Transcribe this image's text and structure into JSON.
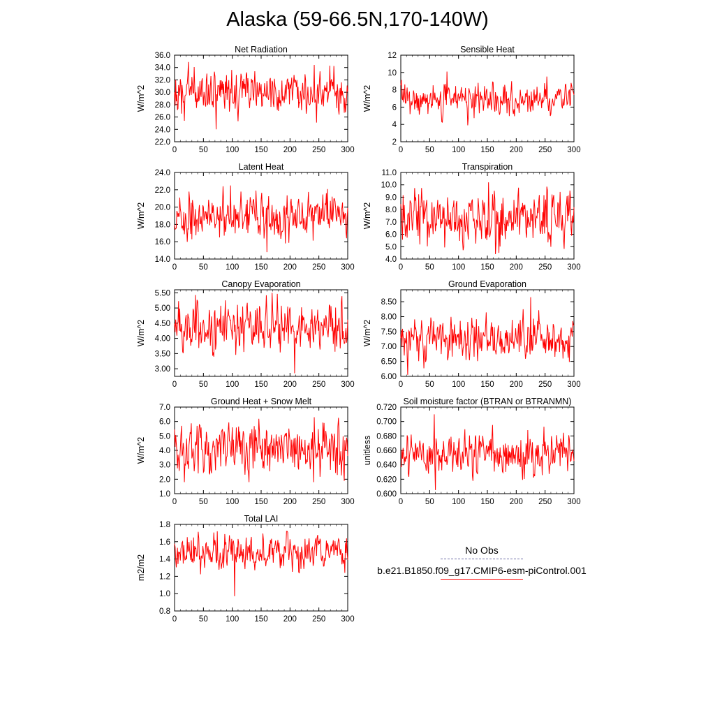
{
  "title": "Alaska (59-66.5N,170-140W)",
  "colors": {
    "model_line": "#ff0000",
    "obs_line": "#6f6fa8"
  },
  "legend": {
    "items": [
      {
        "label": "No Obs",
        "style": "dashed",
        "color": "#6f6fa8"
      },
      {
        "label": "b.e21.B1850.f09_g17.CMIP6-esm-piControl.001",
        "style": "solid",
        "color": "#ff0000"
      }
    ]
  },
  "chart_data": [
    {
      "type": "line",
      "title": "Net Radiation",
      "ylabel": "W/m^2",
      "xlim": [
        0,
        300
      ],
      "ylim": [
        22,
        36
      ],
      "xticks": [
        0,
        50,
        100,
        150,
        200,
        250,
        300
      ],
      "yticks": [
        22,
        24,
        26,
        28,
        30,
        32,
        34,
        36
      ],
      "ytick_labels": [
        "22.0",
        "24.0",
        "26.0",
        "28.0",
        "30.0",
        "32.0",
        "34.0",
        "36.0"
      ],
      "series": [
        {
          "mean": 29.9,
          "amp": 1.7,
          "seed": 1,
          "min": 24.0,
          "max": 34.9
        }
      ]
    },
    {
      "type": "line",
      "title": "Sensible Heat",
      "ylabel": "W/m^2",
      "xlim": [
        0,
        300
      ],
      "ylim": [
        2,
        12
      ],
      "xticks": [
        0,
        50,
        100,
        150,
        200,
        250,
        300
      ],
      "yticks": [
        2,
        4,
        6,
        8,
        10,
        12
      ],
      "ytick_labels": [
        "2",
        "4",
        "6",
        "8",
        "10",
        "12"
      ],
      "series": [
        {
          "mean": 6.9,
          "amp": 0.9,
          "seed": 2,
          "min": 3.9,
          "max": 10.1
        }
      ]
    },
    {
      "type": "line",
      "title": "Latent Heat",
      "ylabel": "W/m^2",
      "xlim": [
        0,
        300
      ],
      "ylim": [
        14,
        24
      ],
      "xticks": [
        0,
        50,
        100,
        150,
        200,
        250,
        300
      ],
      "yticks": [
        14,
        16,
        18,
        20,
        22,
        24
      ],
      "ytick_labels": [
        "14.0",
        "16.0",
        "18.0",
        "20.0",
        "22.0",
        "24.0"
      ],
      "series": [
        {
          "mean": 19.0,
          "amp": 1.3,
          "seed": 3,
          "min": 14.8,
          "max": 22.5
        }
      ]
    },
    {
      "type": "line",
      "title": "Transpiration",
      "ylabel": "W/m^2",
      "xlim": [
        0,
        300
      ],
      "ylim": [
        4,
        11
      ],
      "xticks": [
        0,
        50,
        100,
        150,
        200,
        250,
        300
      ],
      "yticks": [
        4,
        5,
        6,
        7,
        8,
        9,
        10,
        11
      ],
      "ytick_labels": [
        "4.0",
        "5.0",
        "6.0",
        "7.0",
        "8.0",
        "9.0",
        "10.0",
        "11.0"
      ],
      "series": [
        {
          "mean": 7.4,
          "amp": 1.1,
          "seed": 4,
          "min": 4.4,
          "max": 10.2
        }
      ]
    },
    {
      "type": "line",
      "title": "Canopy Evaporation",
      "ylabel": "W/m^2",
      "xlim": [
        0,
        300
      ],
      "ylim": [
        2.75,
        5.6
      ],
      "xticks": [
        0,
        50,
        100,
        150,
        200,
        250,
        300
      ],
      "yticks": [
        3.0,
        3.5,
        4.0,
        4.5,
        5.0,
        5.5
      ],
      "ytick_labels": [
        "3.00",
        "3.50",
        "4.00",
        "4.50",
        "5.00",
        "5.50"
      ],
      "series": [
        {
          "mean": 4.35,
          "amp": 0.4,
          "seed": 5,
          "min": 2.85,
          "max": 5.5
        }
      ]
    },
    {
      "type": "line",
      "title": "Ground Evaporation",
      "ylabel": "W/m^2",
      "xlim": [
        0,
        300
      ],
      "ylim": [
        6.0,
        8.9
      ],
      "xticks": [
        0,
        50,
        100,
        150,
        200,
        250,
        300
      ],
      "yticks": [
        6.0,
        6.5,
        7.0,
        7.5,
        8.0,
        8.5
      ],
      "ytick_labels": [
        "6.00",
        "6.50",
        "7.00",
        "7.50",
        "8.00",
        "8.50"
      ],
      "series": [
        {
          "mean": 7.25,
          "amp": 0.35,
          "seed": 6,
          "min": 6.05,
          "max": 8.65
        }
      ]
    },
    {
      "type": "line",
      "title": "Ground Heat + Snow Melt",
      "ylabel": "W/m^2",
      "xlim": [
        0,
        300
      ],
      "ylim": [
        1,
        7
      ],
      "xticks": [
        0,
        50,
        100,
        150,
        200,
        250,
        300
      ],
      "yticks": [
        1,
        2,
        3,
        4,
        5,
        6,
        7
      ],
      "ytick_labels": [
        "1.0",
        "2.0",
        "3.0",
        "4.0",
        "5.0",
        "6.0",
        "7.0"
      ],
      "series": [
        {
          "mean": 4.1,
          "amp": 0.9,
          "seed": 7,
          "min": 1.8,
          "max": 6.3
        }
      ]
    },
    {
      "type": "line",
      "title": "Soil moisture factor (BTRAN or BTRANMN)",
      "ylabel": "unitless",
      "xlim": [
        0,
        300
      ],
      "ylim": [
        0.6,
        0.72
      ],
      "xticks": [
        0,
        50,
        100,
        150,
        200,
        250,
        300
      ],
      "yticks": [
        0.6,
        0.62,
        0.64,
        0.66,
        0.68,
        0.7,
        0.72
      ],
      "ytick_labels": [
        "0.600",
        "0.620",
        "0.640",
        "0.660",
        "0.680",
        "0.700",
        "0.720"
      ],
      "series": [
        {
          "mean": 0.655,
          "amp": 0.015,
          "seed": 8,
          "min": 0.605,
          "max": 0.71
        }
      ]
    },
    {
      "type": "line",
      "title": "Total LAI",
      "ylabel": "m2/m2",
      "xlim": [
        0,
        300
      ],
      "ylim": [
        0.8,
        1.8
      ],
      "xticks": [
        0,
        50,
        100,
        150,
        200,
        250,
        300
      ],
      "yticks": [
        0.8,
        1.0,
        1.2,
        1.4,
        1.6,
        1.8
      ],
      "ytick_labels": [
        "0.8",
        "1.0",
        "1.2",
        "1.4",
        "1.6",
        "1.8"
      ],
      "series": [
        {
          "mean": 1.48,
          "amp": 0.1,
          "seed": 9,
          "min": 0.97,
          "max": 1.72
        }
      ]
    }
  ]
}
